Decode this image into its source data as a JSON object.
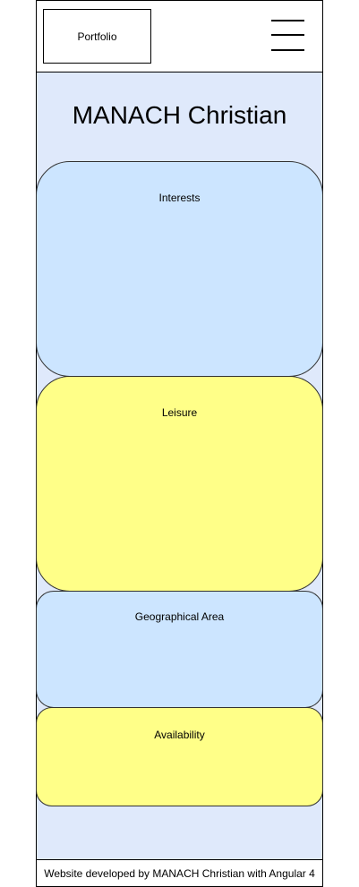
{
  "header": {
    "brand": "Portfolio",
    "menu_icon": "hamburger-menu-icon"
  },
  "page": {
    "title": "MANACH Christian"
  },
  "sections": [
    {
      "label": "Interests",
      "color": "#cce5ff"
    },
    {
      "label": "Leisure",
      "color": "#ffff88"
    },
    {
      "label": "Geographical Area",
      "color": "#cce5ff"
    },
    {
      "label": "Availability",
      "color": "#ffff88"
    }
  ],
  "footer": {
    "text": "Website developed by MANACH Christian with Angular 4"
  },
  "colors": {
    "background": "#dfe9fb",
    "blue_card": "#cce5ff",
    "yellow_card": "#ffff88"
  }
}
